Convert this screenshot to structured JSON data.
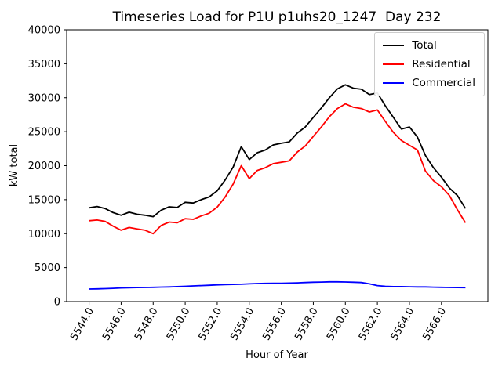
{
  "chart_data": {
    "type": "line",
    "title": "Timeseries Load for P1U p1uhs20_1247  Day 232",
    "xlabel": "Hour of Year",
    "ylabel": "kW total",
    "xlim": [
      5542.6,
      5568.9
    ],
    "ylim": [
      0,
      40000
    ],
    "grid": false,
    "legend_position": "upper right",
    "axis_color": "#000000",
    "x_tick_rotation_deg": 60,
    "x_ticks": [
      {
        "value": 5544,
        "label": "5544.0"
      },
      {
        "value": 5546,
        "label": "5546.0"
      },
      {
        "value": 5548,
        "label": "5548.0"
      },
      {
        "value": 5550,
        "label": "5550.0"
      },
      {
        "value": 5552,
        "label": "5552.0"
      },
      {
        "value": 5554,
        "label": "5554.0"
      },
      {
        "value": 5556,
        "label": "5556.0"
      },
      {
        "value": 5558,
        "label": "5558.0"
      },
      {
        "value": 5560,
        "label": "5560.0"
      },
      {
        "value": 5562,
        "label": "5562.0"
      },
      {
        "value": 5564,
        "label": "5564.0"
      },
      {
        "value": 5566,
        "label": "5566.0"
      }
    ],
    "y_ticks": [
      {
        "value": 0,
        "label": "0"
      },
      {
        "value": 5000,
        "label": "5000"
      },
      {
        "value": 10000,
        "label": "10000"
      },
      {
        "value": 15000,
        "label": "15000"
      },
      {
        "value": 20000,
        "label": "20000"
      },
      {
        "value": 25000,
        "label": "25000"
      },
      {
        "value": 30000,
        "label": "30000"
      },
      {
        "value": 35000,
        "label": "35000"
      },
      {
        "value": 40000,
        "label": "40000"
      }
    ],
    "x": [
      5544.0,
      5544.5,
      5545.0,
      5545.5,
      5546.0,
      5546.5,
      5547.0,
      5547.5,
      5548.0,
      5548.5,
      5549.0,
      5549.5,
      5550.0,
      5550.5,
      5551.0,
      5551.5,
      5552.0,
      5552.5,
      5553.0,
      5553.5,
      5554.0,
      5554.5,
      5555.0,
      5555.5,
      5556.0,
      5556.5,
      5557.0,
      5557.5,
      5558.0,
      5558.5,
      5559.0,
      5559.5,
      5560.0,
      5560.5,
      5561.0,
      5561.5,
      5562.0,
      5562.5,
      5563.0,
      5563.5,
      5564.0,
      5564.5,
      5565.0,
      5565.5,
      5566.0,
      5566.5,
      5567.0,
      5567.5
    ],
    "series": [
      {
        "name": "Total",
        "color": "#000000",
        "values": [
          13800,
          14000,
          13700,
          13100,
          12700,
          13150,
          12850,
          12700,
          12500,
          13450,
          13950,
          13850,
          14600,
          14500,
          15000,
          15400,
          16300,
          17900,
          19800,
          22800,
          20900,
          21900,
          22300,
          23050,
          23300,
          23500,
          24800,
          25700,
          27100,
          28500,
          30000,
          31300,
          31900,
          31400,
          31250,
          30450,
          30700,
          28800,
          27100,
          25400,
          25700,
          24200,
          21500,
          19700,
          18300,
          16700,
          15600,
          13700
        ]
      },
      {
        "name": "Residential",
        "color": "#ff0000",
        "values": [
          11900,
          12000,
          11800,
          11100,
          10500,
          10900,
          10700,
          10500,
          10000,
          11200,
          11700,
          11600,
          12200,
          12100,
          12600,
          13000,
          13900,
          15400,
          17300,
          20000,
          18100,
          19300,
          19700,
          20300,
          20500,
          20700,
          22000,
          22900,
          24300,
          25700,
          27200,
          28400,
          29100,
          28600,
          28400,
          27900,
          28200,
          26500,
          24900,
          23700,
          23000,
          22300,
          19200,
          17800,
          16900,
          15600,
          13500,
          11600
        ]
      },
      {
        "name": "Commercial",
        "color": "#0000ff",
        "values": [
          1850,
          1870,
          1900,
          1950,
          2000,
          2030,
          2060,
          2080,
          2100,
          2130,
          2160,
          2200,
          2250,
          2300,
          2350,
          2400,
          2450,
          2500,
          2520,
          2550,
          2600,
          2650,
          2680,
          2700,
          2700,
          2720,
          2750,
          2800,
          2850,
          2870,
          2900,
          2900,
          2880,
          2850,
          2800,
          2600,
          2350,
          2250,
          2200,
          2200,
          2180,
          2150,
          2150,
          2120,
          2100,
          2080,
          2060,
          2050
        ]
      }
    ]
  }
}
